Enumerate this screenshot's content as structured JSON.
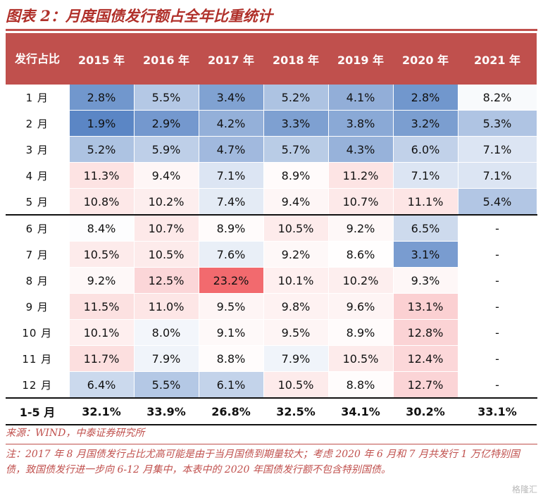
{
  "title": "图表 2：月度国债发行额占全年比重统计",
  "table": {
    "corner_label": "发行占比",
    "years": [
      "2015 年",
      "2016 年",
      "2017 年",
      "2018 年",
      "2019 年",
      "2020 年",
      "2021 年"
    ],
    "rows": [
      {
        "month": "1 月",
        "cells": [
          "2.8%",
          "5.5%",
          "3.4%",
          "5.2%",
          "4.1%",
          "2.8%",
          "8.2%"
        ]
      },
      {
        "month": "2 月",
        "cells": [
          "1.9%",
          "2.9%",
          "4.2%",
          "3.3%",
          "3.8%",
          "3.2%",
          "5.3%"
        ]
      },
      {
        "month": "3 月",
        "cells": [
          "5.2%",
          "5.9%",
          "4.7%",
          "5.7%",
          "4.3%",
          "6.0%",
          "7.1%"
        ]
      },
      {
        "month": "4 月",
        "cells": [
          "11.3%",
          "9.4%",
          "7.1%",
          "8.9%",
          "11.2%",
          "7.1%",
          "7.1%"
        ]
      },
      {
        "month": "5 月",
        "cells": [
          "10.8%",
          "10.2%",
          "7.4%",
          "9.4%",
          "10.7%",
          "11.1%",
          "5.4%"
        ]
      },
      {
        "month": "6 月",
        "cells": [
          "8.4%",
          "10.7%",
          "8.9%",
          "10.5%",
          "9.2%",
          "6.5%",
          "-"
        ]
      },
      {
        "month": "7 月",
        "cells": [
          "10.5%",
          "10.5%",
          "7.6%",
          "9.2%",
          "8.6%",
          "3.1%",
          "-"
        ]
      },
      {
        "month": "8 月",
        "cells": [
          "9.2%",
          "12.5%",
          "23.2%",
          "10.1%",
          "10.2%",
          "9.3%",
          "-"
        ]
      },
      {
        "month": "9 月",
        "cells": [
          "11.5%",
          "11.0%",
          "9.5%",
          "9.8%",
          "9.6%",
          "13.1%",
          "-"
        ]
      },
      {
        "month": "10 月",
        "cells": [
          "10.1%",
          "8.0%",
          "9.1%",
          "9.5%",
          "8.9%",
          "12.8%",
          "-"
        ]
      },
      {
        "month": "11 月",
        "cells": [
          "11.7%",
          "7.9%",
          "8.8%",
          "7.9%",
          "10.5%",
          "12.4%",
          "-"
        ]
      },
      {
        "month": "12 月",
        "cells": [
          "6.4%",
          "5.5%",
          "6.1%",
          "10.5%",
          "8.8%",
          "12.7%",
          "-"
        ]
      }
    ],
    "total": {
      "label": "1-5 月",
      "cells": [
        "32.1%",
        "33.9%",
        "26.8%",
        "32.5%",
        "34.1%",
        "30.2%",
        "33.1%"
      ]
    }
  },
  "source": "来源：WIND，中泰证券研究所",
  "note": "注：2017 年 8 月国债发行占比尤高可能是由于当月国债到期量较大；考虑 2020 年 6 月和 7 月共发行 1 万亿特别国债，致国债发行进一步向 6-12 月集中，本表中的 2020 年国债发行额不包含特别国债。",
  "watermark": "格隆汇",
  "colors": {
    "header_bg": "#c0504d",
    "title": "#b0302a",
    "low": "#5b86c5",
    "mid": "#ffffff",
    "high": "#f26a6e"
  }
}
